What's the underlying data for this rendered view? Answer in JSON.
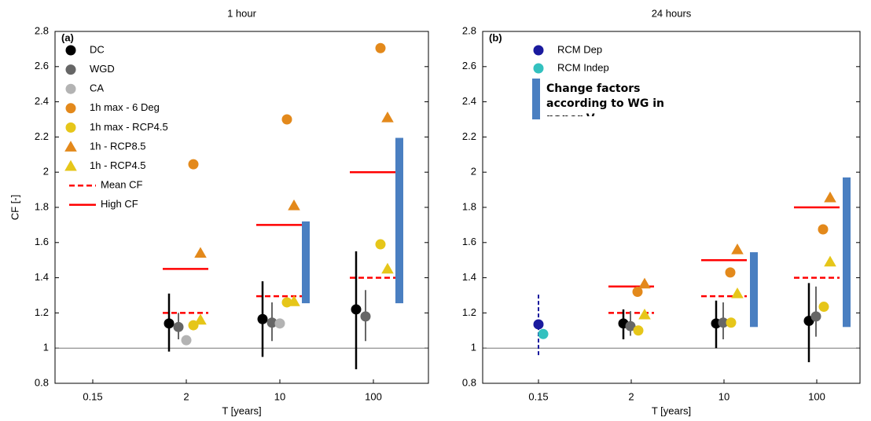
{
  "chart_data": [
    {
      "type": "scatter",
      "title": "1 hour",
      "panel_label": "(a)",
      "ylabel": "CF [-]",
      "xlabel": "T [years]",
      "categories": [
        "0.15",
        "2",
        "10",
        "100"
      ],
      "ylim": [
        0.8,
        2.8
      ],
      "yticks": [
        0.8,
        1,
        1.2,
        1.4,
        1.6,
        1.8,
        2,
        2.2,
        2.4,
        2.6,
        2.8
      ],
      "reference_line": 1,
      "legend": "upper left",
      "series": [
        {
          "name": "DC",
          "color": "#000000",
          "marker": "circle",
          "values": [
            null,
            1.14,
            1.165,
            1.22
          ],
          "low": [
            null,
            0.98,
            0.95,
            0.88
          ],
          "high": [
            null,
            1.31,
            1.38,
            1.55
          ]
        },
        {
          "name": "WGD",
          "color": "#666666",
          "marker": "circle",
          "values": [
            null,
            1.12,
            1.145,
            1.18
          ],
          "low": [
            null,
            1.05,
            1.04,
            1.04
          ],
          "high": [
            null,
            1.2,
            1.26,
            1.33
          ]
        },
        {
          "name": "CA",
          "color": "#b3b3b3",
          "marker": "circle",
          "values": [
            null,
            1.045,
            1.14,
            null
          ]
        },
        {
          "name": "1h max - 6 Deg",
          "color": "#e3891b",
          "marker": "circle",
          "values": [
            null,
            2.045,
            2.3,
            2.705
          ]
        },
        {
          "name": "1h max - RCP4.5",
          "color": "#e6c619",
          "marker": "circle",
          "values": [
            null,
            1.13,
            1.26,
            1.59
          ]
        },
        {
          "name": "1h - RCP8.5",
          "color": "#e3891b",
          "marker": "triangle",
          "values": [
            null,
            1.54,
            1.81,
            2.31
          ]
        },
        {
          "name": "1h - RCP4.5",
          "color": "#e6c619",
          "marker": "triangle",
          "values": [
            null,
            1.16,
            1.265,
            1.45
          ]
        },
        {
          "name": "Mean CF",
          "color": "#ff0000",
          "marker": "dashed-line",
          "values": [
            null,
            1.2,
            1.295,
            1.4
          ]
        },
        {
          "name": "High CF",
          "color": "#ff0000",
          "marker": "line",
          "values": [
            null,
            1.45,
            1.7,
            2.0
          ]
        },
        {
          "color": "#4a7fc1",
          "marker": "bar",
          "low": [
            null,
            null,
            1.255,
            1.255
          ],
          "high": [
            null,
            null,
            1.72,
            2.195
          ]
        }
      ]
    },
    {
      "type": "scatter",
      "title": "24 hours",
      "panel_label": "(b)",
      "xlabel": "T [years]",
      "categories": [
        "0.15",
        "2",
        "10",
        "100"
      ],
      "ylim": [
        0.8,
        2.8
      ],
      "yticks": [
        0.8,
        1,
        1.2,
        1.4,
        1.6,
        1.8,
        2,
        2.2,
        2.4,
        2.6,
        2.8
      ],
      "reference_line": 1,
      "legend": "upper left",
      "series": [
        {
          "name": "RCM Dep",
          "color": "#1a1a9e",
          "marker": "circle",
          "error_style": "dashed",
          "values": [
            1.135,
            null,
            null,
            null
          ],
          "low": [
            0.96,
            null,
            null,
            null
          ],
          "high": [
            1.31,
            null,
            null,
            null
          ]
        },
        {
          "name": "RCM Indep",
          "color": "#33c1bf",
          "marker": "circle",
          "values": [
            1.08,
            null,
            null,
            null
          ]
        },
        {
          "color": "#000000",
          "marker": "circle",
          "values": [
            null,
            1.14,
            1.14,
            1.155
          ],
          "low": [
            null,
            1.05,
            1.0,
            0.92
          ],
          "high": [
            null,
            1.22,
            1.27,
            1.37
          ]
        },
        {
          "color": "#666666",
          "marker": "circle",
          "values": [
            null,
            1.125,
            1.145,
            1.18
          ],
          "low": [
            null,
            1.07,
            1.05,
            1.065
          ],
          "high": [
            null,
            1.21,
            1.26,
            1.35
          ]
        },
        {
          "color": "#e3891b",
          "marker": "circle",
          "values": [
            null,
            1.32,
            1.43,
            1.675
          ]
        },
        {
          "color": "#e6c619",
          "marker": "circle",
          "values": [
            null,
            1.1,
            1.145,
            1.235
          ]
        },
        {
          "color": "#e3891b",
          "marker": "triangle",
          "values": [
            null,
            1.365,
            1.56,
            1.855
          ]
        },
        {
          "color": "#e6c619",
          "marker": "triangle",
          "values": [
            null,
            1.19,
            1.31,
            1.49
          ]
        },
        {
          "color": "#ff0000",
          "marker": "dashed-line",
          "values": [
            null,
            1.2,
            1.295,
            1.4
          ]
        },
        {
          "color": "#ff0000",
          "marker": "line",
          "values": [
            null,
            1.35,
            1.5,
            1.8
          ]
        },
        {
          "name": "Change factors according to WG in paper V",
          "color": "#4a7fc1",
          "marker": "bar",
          "low": [
            null,
            null,
            1.12,
            1.12
          ],
          "high": [
            null,
            null,
            1.545,
            1.97
          ]
        }
      ]
    }
  ]
}
